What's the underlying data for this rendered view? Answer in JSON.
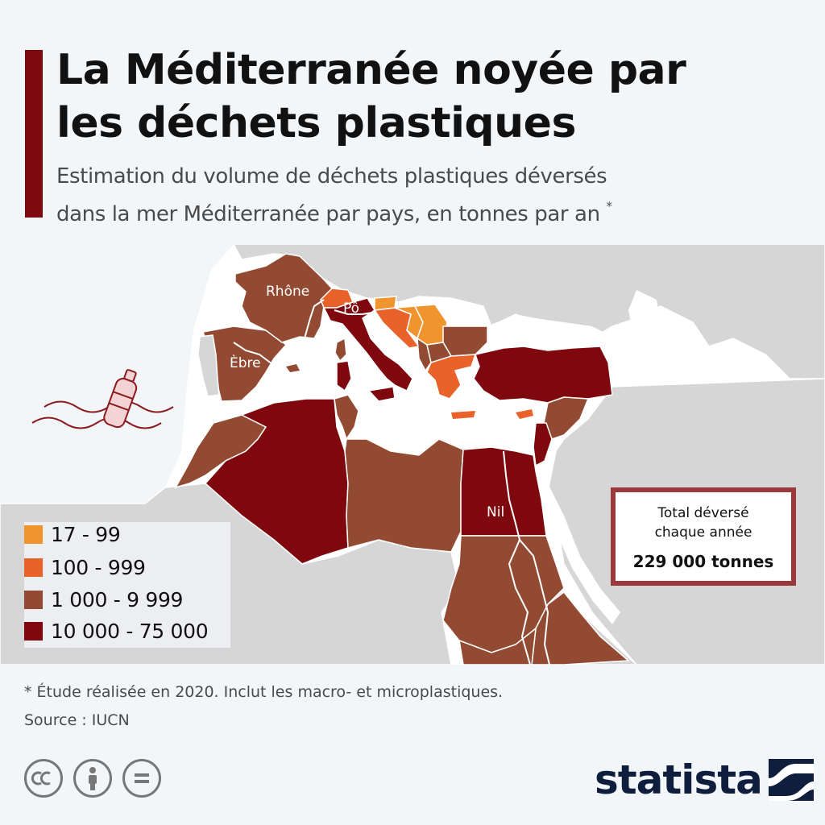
{
  "title": {
    "line1": "La Méditerranée noyée par",
    "line2": "les déchets plastiques"
  },
  "subtitle": {
    "line1": "Estimation du volume de déchets plastiques déversés",
    "line2": "dans la mer Méditerranée par pays, en tonnes par an",
    "marker": "*"
  },
  "legend": {
    "items": [
      {
        "label": "17 - 99",
        "color": "#f0952e"
      },
      {
        "label": "100 - 999",
        "color": "#e8622a"
      },
      {
        "label": "1 000 - 9 999",
        "color": "#934a33"
      },
      {
        "label": "10 000 - 75 000",
        "color": "#7e080d"
      }
    ]
  },
  "map": {
    "colors": {
      "sea": "#ffffff",
      "land": "#d6d6d6",
      "border": "#ffffff",
      "river": "#ffffff"
    },
    "rivers": [
      {
        "name": "Rhône"
      },
      {
        "name": "Pô"
      },
      {
        "name": "Èbre"
      },
      {
        "name": "Nil"
      }
    ],
    "icon": "plastic-bottle-in-waves-icon"
  },
  "total": {
    "label_line1": "Total déversé",
    "label_line2": "chaque année",
    "value": "229 000 tonnes"
  },
  "footnote": "* Étude réalisée en 2020. Inclut les macro- et microplastiques.",
  "source": "Source : IUCN",
  "license": {
    "icons": [
      "creative-commons-icon",
      "attribution-icon",
      "no-derivatives-icon"
    ]
  },
  "brand": {
    "name": "statista",
    "color": "#0f1e3c"
  }
}
